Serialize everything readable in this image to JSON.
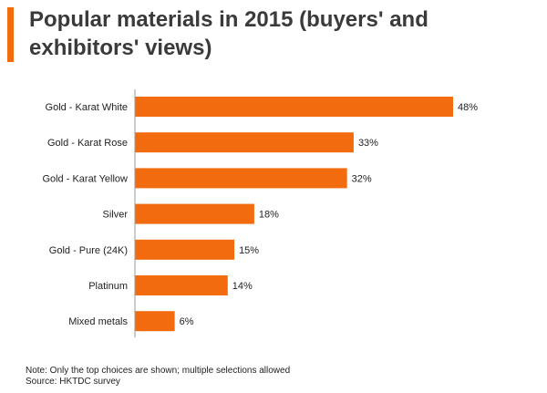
{
  "header": {
    "title": "Popular materials in 2015 (buyers' and exhibitors' views)"
  },
  "colors": {
    "accent": "#f26b0f",
    "bar": "#f26b0f",
    "axis": "#999999"
  },
  "chart_data": {
    "type": "bar",
    "orientation": "horizontal",
    "title": "Popular materials in 2015 (buyers' and exhibitors' views)",
    "xlabel": "",
    "ylabel": "",
    "xlim": [
      0,
      48
    ],
    "grid": false,
    "legend": "none",
    "categories": [
      "Gold - Karat White",
      "Gold - Karat Rose",
      "Gold - Karat Yellow",
      "Silver",
      "Gold - Pure (24K)",
      "Platinum",
      "Mixed metals"
    ],
    "values": [
      48,
      33,
      32,
      18,
      15,
      14,
      6
    ],
    "value_labels": [
      "48%",
      "33%",
      "32%",
      "18%",
      "15%",
      "14%",
      "6%"
    ]
  },
  "footer": {
    "note": "Note: Only the top choices are shown; multiple selections allowed",
    "source": "Source: HKTDC survey"
  }
}
